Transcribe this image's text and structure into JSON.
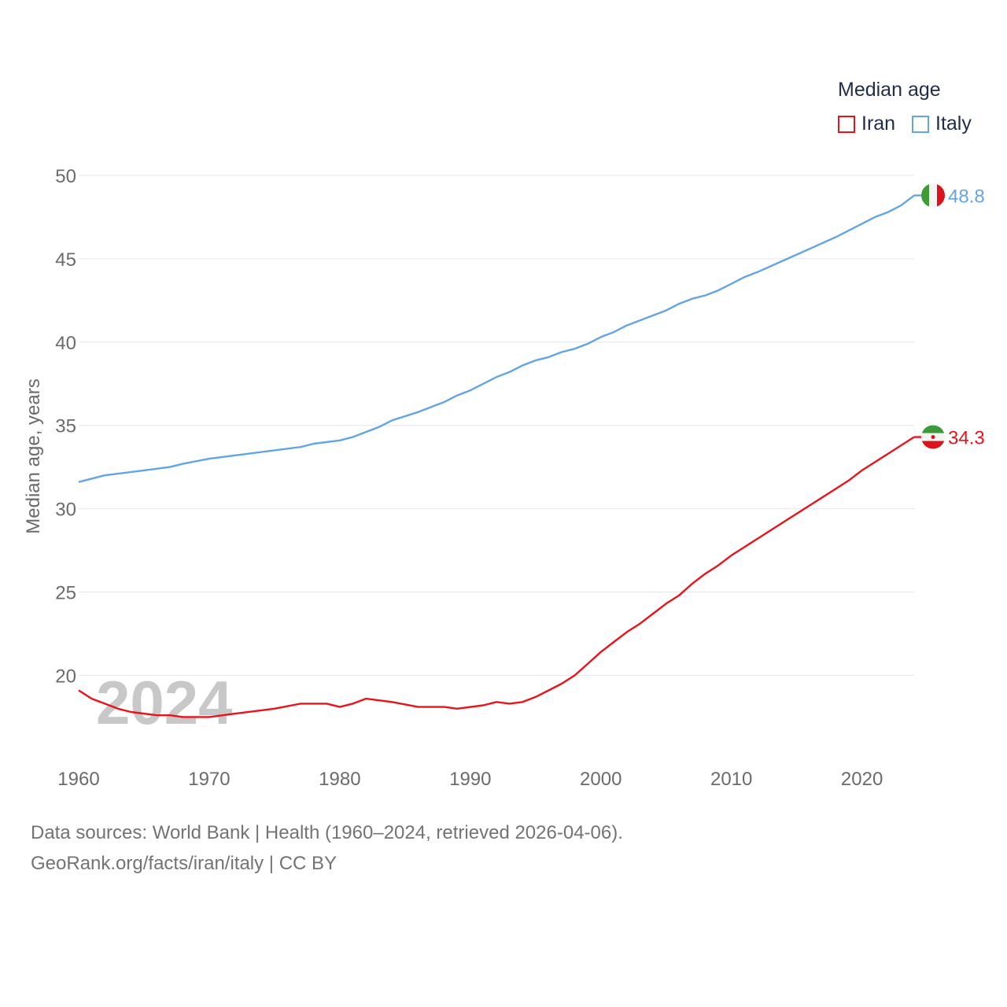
{
  "legend": {
    "title": "Median age",
    "items": [
      {
        "label": "Iran",
        "color": "#e8141c"
      },
      {
        "label": "Italy",
        "color": "#63a5e3"
      }
    ]
  },
  "watermark_year": "2024",
  "footer": {
    "line1": "Data sources: World Bank | Health (1960–2024, retrieved 2026-04-06).",
    "line2": "GeoRank.org/facts/iran/italy | CC BY"
  },
  "chart_data": {
    "type": "line",
    "title": "",
    "xlabel": "",
    "ylabel": "Median age, years",
    "xlim": [
      1960,
      2024
    ],
    "ylim": [
      15,
      50
    ],
    "yticks": [
      20,
      25,
      30,
      35,
      40,
      45,
      50
    ],
    "xticks": [
      1960,
      1970,
      1980,
      1990,
      2000,
      2010,
      2020
    ],
    "grid": true,
    "series": [
      {
        "name": "Italy",
        "color": "#63a5e3",
        "end_label": "48.8",
        "points": [
          [
            1960,
            31.6
          ],
          [
            1962,
            32.0
          ],
          [
            1965,
            32.3
          ],
          [
            1967,
            32.5
          ],
          [
            1968,
            32.7
          ],
          [
            1970,
            33.0
          ],
          [
            1973,
            33.3
          ],
          [
            1977,
            33.7
          ],
          [
            1978,
            33.9
          ],
          [
            1980,
            34.1
          ],
          [
            1981,
            34.3
          ],
          [
            1983,
            34.9
          ],
          [
            1984,
            35.3
          ],
          [
            1986,
            35.8
          ],
          [
            1988,
            36.4
          ],
          [
            1989,
            36.8
          ],
          [
            1990,
            37.1
          ],
          [
            1992,
            37.9
          ],
          [
            1993,
            38.2
          ],
          [
            1994,
            38.6
          ],
          [
            1995,
            38.9
          ],
          [
            1996,
            39.1
          ],
          [
            1997,
            39.4
          ],
          [
            1998,
            39.6
          ],
          [
            1999,
            39.9
          ],
          [
            2000,
            40.3
          ],
          [
            2001,
            40.6
          ],
          [
            2002,
            41.0
          ],
          [
            2003,
            41.3
          ],
          [
            2005,
            41.9
          ],
          [
            2006,
            42.3
          ],
          [
            2007,
            42.6
          ],
          [
            2008,
            42.8
          ],
          [
            2009,
            43.1
          ],
          [
            2010,
            43.5
          ],
          [
            2011,
            43.9
          ],
          [
            2012,
            44.2
          ],
          [
            2014,
            44.9
          ],
          [
            2016,
            45.6
          ],
          [
            2018,
            46.3
          ],
          [
            2019,
            46.7
          ],
          [
            2020,
            47.1
          ],
          [
            2021,
            47.5
          ],
          [
            2022,
            47.8
          ],
          [
            2023,
            48.2
          ],
          [
            2024,
            48.8
          ]
        ]
      },
      {
        "name": "Iran",
        "color": "#e8141c",
        "end_label": "34.3",
        "points": [
          [
            1960,
            19.1
          ],
          [
            1961,
            18.6
          ],
          [
            1962,
            18.3
          ],
          [
            1963,
            18.0
          ],
          [
            1964,
            17.8
          ],
          [
            1966,
            17.6
          ],
          [
            1967,
            17.6
          ],
          [
            1968,
            17.5
          ],
          [
            1970,
            17.5
          ],
          [
            1972,
            17.7
          ],
          [
            1975,
            18.0
          ],
          [
            1977,
            18.3
          ],
          [
            1979,
            18.3
          ],
          [
            1980,
            18.1
          ],
          [
            1981,
            18.3
          ],
          [
            1982,
            18.6
          ],
          [
            1984,
            18.4
          ],
          [
            1986,
            18.1
          ],
          [
            1988,
            18.1
          ],
          [
            1989,
            18.0
          ],
          [
            1991,
            18.2
          ],
          [
            1992,
            18.4
          ],
          [
            1993,
            18.3
          ],
          [
            1994,
            18.4
          ],
          [
            1995,
            18.7
          ],
          [
            1996,
            19.1
          ],
          [
            1997,
            19.5
          ],
          [
            1998,
            20.0
          ],
          [
            1999,
            20.7
          ],
          [
            2000,
            21.4
          ],
          [
            2001,
            22.0
          ],
          [
            2002,
            22.6
          ],
          [
            2003,
            23.1
          ],
          [
            2004,
            23.7
          ],
          [
            2005,
            24.3
          ],
          [
            2006,
            24.8
          ],
          [
            2007,
            25.5
          ],
          [
            2008,
            26.1
          ],
          [
            2009,
            26.6
          ],
          [
            2010,
            27.2
          ],
          [
            2012,
            28.2
          ],
          [
            2014,
            29.2
          ],
          [
            2016,
            30.2
          ],
          [
            2018,
            31.2
          ],
          [
            2019,
            31.7
          ],
          [
            2020,
            32.3
          ],
          [
            2022,
            33.3
          ],
          [
            2024,
            34.3
          ]
        ]
      }
    ]
  }
}
